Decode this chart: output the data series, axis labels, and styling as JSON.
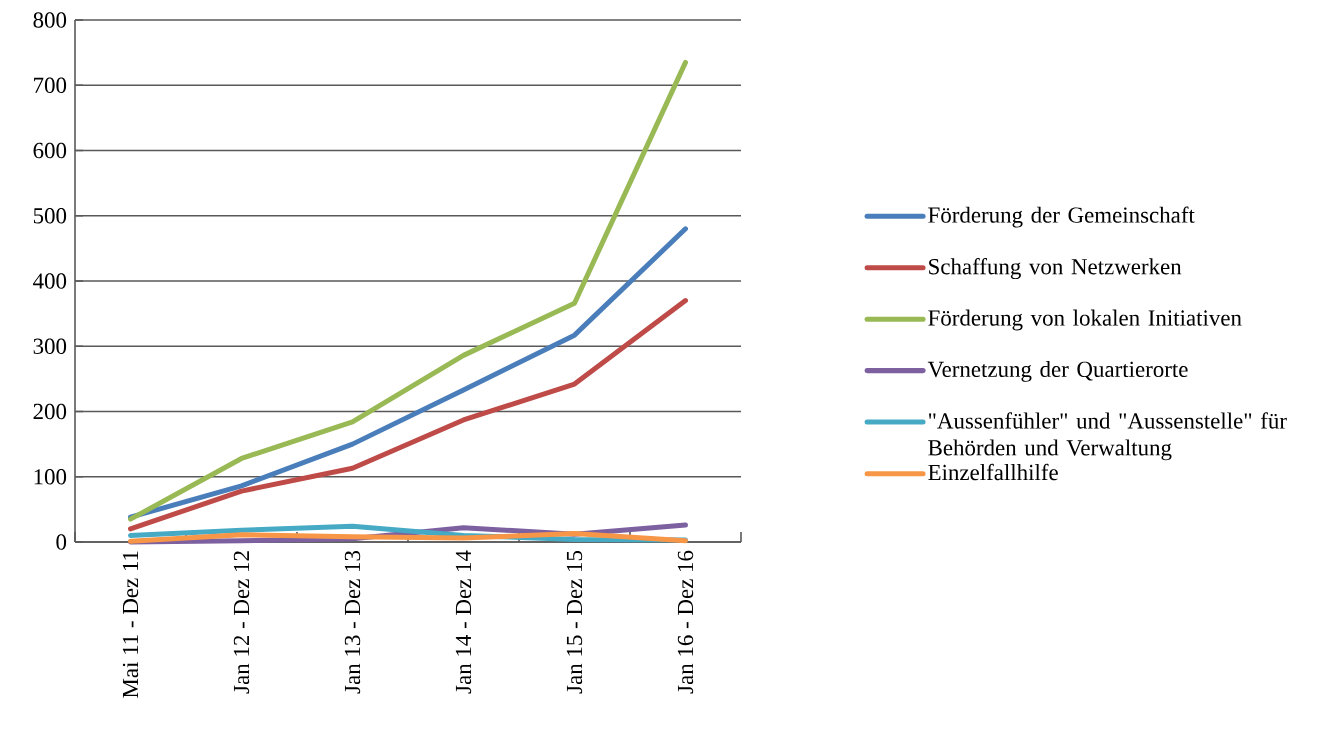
{
  "chart_data": {
    "type": "line",
    "categories": [
      "Mai 11 - Dez 11",
      "Jan 12 - Dez 12",
      "Jan 13 - Dez 13",
      "Jan 14 - Dez 14",
      "Jan 15 - Dez 15",
      "Jan 16 - Dez 16"
    ],
    "series": [
      {
        "name": "Förderung der Gemeinschaft",
        "color": "#4a7ebb",
        "values": [
          38,
          86,
          150,
          233,
          317,
          480
        ]
      },
      {
        "name": "Schaffung von Netzwerken",
        "color": "#be4b48",
        "values": [
          20,
          78,
          113,
          187,
          242,
          370
        ]
      },
      {
        "name": "Förderung von lokalen Initiativen",
        "color": "#98b954",
        "values": [
          35,
          128,
          184,
          286,
          366,
          735
        ]
      },
      {
        "name": "Vernetzung der Quartierorte",
        "color": "#7d60a0",
        "values": [
          0,
          2,
          5,
          22,
          12,
          26
        ]
      },
      {
        "name": "\"Aussenfühler\" und \"Aussenstelle\" für Behörden und Verwaltung",
        "color": "#46aac5",
        "values": [
          10,
          18,
          24,
          10,
          4,
          3
        ]
      },
      {
        "name": "Einzelfallhilfe",
        "color": "#f79646",
        "values": [
          1,
          11,
          8,
          6,
          13,
          2
        ]
      }
    ],
    "ylim": [
      0,
      800
    ],
    "yticks": [
      0,
      100,
      200,
      300,
      400,
      500,
      600,
      700,
      800
    ],
    "grid": "y",
    "legend": "right",
    "marker": "none",
    "line_style": "solid"
  }
}
